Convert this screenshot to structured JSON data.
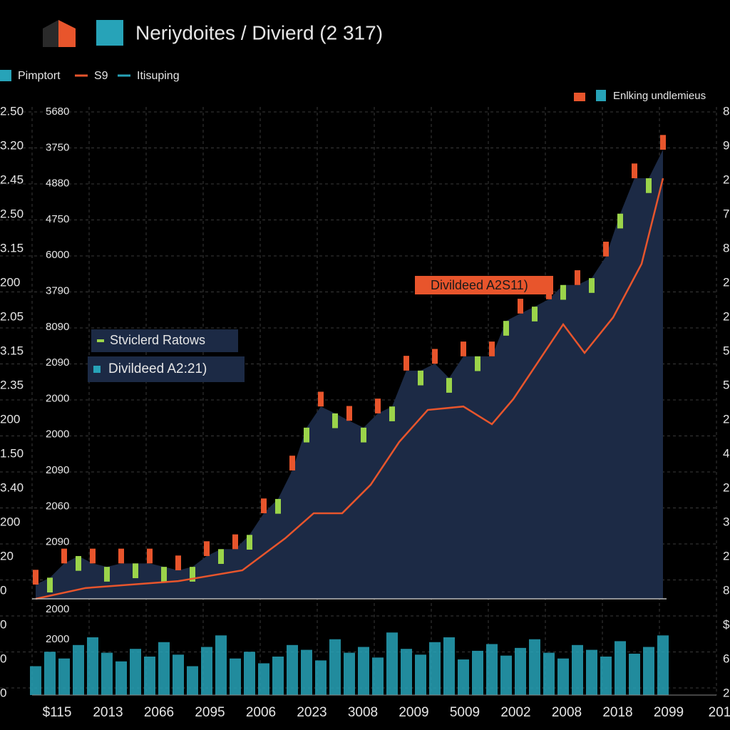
{
  "chart_data": {
    "type": "candlestick",
    "title": "Neriydoites / Divierd (2 317)",
    "legend": [
      {
        "name": "Pimptort",
        "color": "#27a3b8"
      },
      {
        "name": "S9",
        "color": "#e8552c"
      },
      {
        "name": "Itisuping",
        "color": "#27a3b8"
      }
    ],
    "legend_right": "Enlking undlemieus",
    "annotations": [
      "Stviclerd Ratows",
      "Divildeed A2:21)",
      "Divildeed A2S11)"
    ],
    "left_labels": [
      "2.50",
      "3.20",
      "2.45",
      "2.50",
      "3.15",
      "200",
      "2.05",
      "3.15",
      "2.35",
      "200",
      "1.50",
      "3.40",
      "200",
      "20",
      "0",
      "0",
      "0",
      "0"
    ],
    "mid_labels": [
      "5680",
      "3750",
      "4880",
      "4750",
      "6000",
      "3790",
      "8090",
      "2090",
      "2000",
      "2000",
      "2090",
      "2060",
      "2090",
      "2000",
      "2000"
    ],
    "right_labels": [
      "8",
      "9",
      "2",
      "7",
      "8",
      "2",
      "2",
      "5",
      "5",
      "2",
      "4",
      "2",
      "3",
      "2",
      "8",
      "$",
      "6",
      "2"
    ],
    "x_labels": [
      "$115",
      "2013",
      "2066",
      "2095",
      "2006",
      "2023",
      "3008",
      "2009",
      "5009",
      "2002",
      "2008",
      "2018",
      "2099",
      "201"
    ],
    "xlim": [
      -0.25,
      44.25
    ],
    "ylim": [
      0,
      100
    ],
    "y2lim": [
      0,
      100
    ],
    "up_color": "#9bd44a",
    "down_color": "#e8552c",
    "area_color": "#1c2a45",
    "volume_color": "#27a3b8",
    "trend_color": "#e8552c",
    "open": [
      5.9,
      1.3,
      10.2,
      5.7,
      10.2,
      3.5,
      10.2,
      4.2,
      10.2,
      3.5,
      8.8,
      3.5,
      11.7,
      7.1,
      13.1,
      10,
      20.4,
      17.3,
      29.1,
      31.8,
      42.1,
      34.7,
      39.2,
      31.8,
      40.7,
      36.1,
      49.4,
      43.4,
      50.8,
      41.9,
      52.3,
      46.3,
      52.3,
      53.5,
      61,
      56.4,
      63.9,
      60.8,
      66.8,
      62.2,
      72.6,
      75.3,
      88.5,
      82.5,
      94.3
    ],
    "close": [
      2.9,
      4.3,
      7.2,
      8.7,
      7.2,
      6.5,
      7.2,
      7.2,
      7.2,
      6.5,
      5.8,
      6.5,
      8.7,
      10.1,
      10.1,
      13,
      17.4,
      20.3,
      26.1,
      34.8,
      39.1,
      37.7,
      36.2,
      34.8,
      37.7,
      39.1,
      46.4,
      46.4,
      47.8,
      44.9,
      49.3,
      49.3,
      49.3,
      56.5,
      58,
      59.4,
      60.9,
      63.8,
      63.8,
      65.2,
      69.6,
      78.3,
      85.5,
      85.5,
      91.3
    ],
    "volume": [
      30,
      45,
      38,
      52,
      60,
      44,
      35,
      48,
      40,
      55,
      42,
      30,
      50,
      62,
      38,
      45,
      33,
      40,
      52,
      47,
      36,
      58,
      44,
      50,
      39,
      65,
      48,
      42,
      55,
      60,
      37,
      46,
      53,
      41,
      49,
      58,
      44,
      38,
      52,
      47,
      40,
      56,
      43,
      50,
      62
    ],
    "trend_x": [
      0,
      3.5,
      10,
      14.5,
      17.5,
      19.5,
      21.5,
      23.5,
      25.5,
      27.5,
      30,
      32,
      33.5,
      37,
      38.5,
      40.5,
      42.5,
      44
    ],
    "trend": [
      0,
      2.2,
      3.6,
      5.8,
      12.3,
      17.4,
      17.4,
      23.2,
      31.9,
      38.4,
      39.1,
      35.5,
      40.6,
      55.8,
      50,
      57.2,
      68.1,
      85.5
    ]
  }
}
